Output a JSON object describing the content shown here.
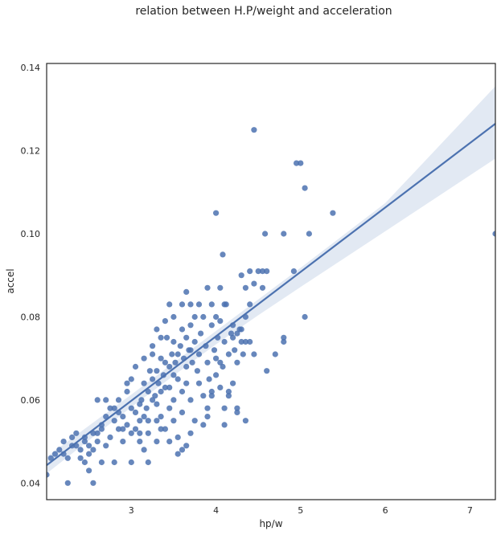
{
  "chart_data": {
    "type": "scatter",
    "title": "relation between H.P/weight and acceleration",
    "xlabel": "hp/w",
    "ylabel": "accel",
    "xlim": [
      2.0,
      7.3
    ],
    "ylim": [
      0.036,
      0.141
    ],
    "xticks": [
      3,
      4,
      5,
      6,
      7
    ],
    "yticks": [
      0.04,
      0.06,
      0.08,
      0.1,
      0.12,
      0.14
    ],
    "xtick_labels": [
      "3",
      "4",
      "5",
      "6",
      "7"
    ],
    "ytick_labels": [
      "0.04",
      "0.06",
      "0.08",
      "0.10",
      "0.12",
      "0.14"
    ],
    "grid": false,
    "point_color": "#4c72b0",
    "line_color": "#4c72b0",
    "ci_color": "#c6d3e8",
    "regression": {
      "x": [
        2.0,
        7.3
      ],
      "y": [
        0.0443,
        0.1265
      ]
    },
    "confidence_band": {
      "x": [
        2.0,
        3.0,
        4.0,
        4.5,
        5.0,
        6.0,
        7.3
      ],
      "lower": [
        0.0423,
        0.0583,
        0.0734,
        0.0804,
        0.0872,
        0.1006,
        0.1181
      ],
      "upper": [
        0.0463,
        0.0613,
        0.0766,
        0.0842,
        0.0918,
        0.1074,
        0.1355
      ]
    },
    "points": [
      [
        2.0,
        0.042
      ],
      [
        2.05,
        0.046
      ],
      [
        2.1,
        0.047
      ],
      [
        2.15,
        0.048
      ],
      [
        2.2,
        0.047
      ],
      [
        2.2,
        0.05
      ],
      [
        2.25,
        0.04
      ],
      [
        2.3,
        0.049
      ],
      [
        2.3,
        0.051
      ],
      [
        2.35,
        0.052
      ],
      [
        2.4,
        0.046
      ],
      [
        2.4,
        0.048
      ],
      [
        2.45,
        0.045
      ],
      [
        2.45,
        0.051
      ],
      [
        2.5,
        0.043
      ],
      [
        2.5,
        0.049
      ],
      [
        2.55,
        0.04
      ],
      [
        2.55,
        0.048
      ],
      [
        2.6,
        0.052
      ],
      [
        2.6,
        0.06
      ],
      [
        2.65,
        0.045
      ],
      [
        2.7,
        0.049
      ],
      [
        2.75,
        0.051
      ],
      [
        2.8,
        0.045
      ],
      [
        2.8,
        0.055
      ],
      [
        2.85,
        0.053
      ],
      [
        2.9,
        0.05
      ],
      [
        2.9,
        0.056
      ],
      [
        2.95,
        0.064
      ],
      [
        3.0,
        0.045
      ],
      [
        3.0,
        0.058
      ],
      [
        3.05,
        0.053
      ],
      [
        3.05,
        0.057
      ],
      [
        3.1,
        0.059
      ],
      [
        3.1,
        0.052
      ],
      [
        3.15,
        0.056
      ],
      [
        3.15,
        0.048
      ],
      [
        3.2,
        0.045
      ],
      [
        3.2,
        0.055
      ],
      [
        3.25,
        0.073
      ],
      [
        3.25,
        0.06
      ],
      [
        3.3,
        0.067
      ],
      [
        3.3,
        0.05
      ],
      [
        3.35,
        0.056
      ],
      [
        3.35,
        0.062
      ],
      [
        3.4,
        0.053
      ],
      [
        3.4,
        0.069
      ],
      [
        3.45,
        0.058
      ],
      [
        3.45,
        0.063
      ],
      [
        3.5,
        0.055
      ],
      [
        3.5,
        0.06
      ],
      [
        3.5,
        0.066
      ],
      [
        3.55,
        0.051
      ],
      [
        3.55,
        0.071
      ],
      [
        3.6,
        0.062
      ],
      [
        3.6,
        0.057
      ],
      [
        3.65,
        0.068
      ],
      [
        3.65,
        0.064
      ],
      [
        3.7,
        0.06
      ],
      [
        3.7,
        0.072
      ],
      [
        3.1,
        0.055
      ],
      [
        3.12,
        0.06
      ],
      [
        3.15,
        0.064
      ],
      [
        3.18,
        0.058
      ],
      [
        3.2,
        0.062
      ],
      [
        3.22,
        0.067
      ],
      [
        3.25,
        0.065
      ],
      [
        3.28,
        0.061
      ],
      [
        3.3,
        0.059
      ],
      [
        3.32,
        0.064
      ],
      [
        3.35,
        0.07
      ],
      [
        3.38,
        0.066
      ],
      [
        3.4,
        0.063
      ],
      [
        3.42,
        0.075
      ],
      [
        3.45,
        0.068
      ],
      [
        3.48,
        0.071
      ],
      [
        3.5,
        0.074
      ],
      [
        3.52,
        0.069
      ],
      [
        3.55,
        0.065
      ],
      [
        3.58,
        0.073
      ],
      [
        3.6,
        0.077
      ],
      [
        3.62,
        0.07
      ],
      [
        3.65,
        0.075
      ],
      [
        3.68,
        0.072
      ],
      [
        3.7,
        0.078
      ],
      [
        3.72,
        0.069
      ],
      [
        3.75,
        0.074
      ],
      [
        3.78,
        0.067
      ],
      [
        3.8,
        0.071
      ],
      [
        3.82,
        0.076
      ],
      [
        3.85,
        0.08
      ],
      [
        3.88,
        0.073
      ],
      [
        3.9,
        0.069
      ],
      [
        3.92,
        0.065
      ],
      [
        3.95,
        0.078
      ],
      [
        3.98,
        0.072
      ],
      [
        4.0,
        0.07
      ],
      [
        4.02,
        0.075
      ],
      [
        4.05,
        0.079
      ],
      [
        4.08,
        0.068
      ],
      [
        4.1,
        0.074
      ],
      [
        4.12,
        0.083
      ],
      [
        4.15,
        0.071
      ],
      [
        4.18,
        0.076
      ],
      [
        4.2,
        0.078
      ],
      [
        4.22,
        0.072
      ],
      [
        4.25,
        0.069
      ],
      [
        4.28,
        0.077
      ],
      [
        4.3,
        0.074
      ],
      [
        4.32,
        0.071
      ],
      [
        3.8,
        0.064
      ],
      [
        3.85,
        0.061
      ],
      [
        3.9,
        0.058
      ],
      [
        3.95,
        0.062
      ],
      [
        4.0,
        0.066
      ],
      [
        4.05,
        0.063
      ],
      [
        4.1,
        0.058
      ],
      [
        4.15,
        0.061
      ],
      [
        4.2,
        0.064
      ],
      [
        4.25,
        0.057
      ],
      [
        3.6,
        0.083
      ],
      [
        3.65,
        0.086
      ],
      [
        3.7,
        0.083
      ],
      [
        3.75,
        0.08
      ],
      [
        3.8,
        0.083
      ],
      [
        3.9,
        0.087
      ],
      [
        3.95,
        0.083
      ],
      [
        4.0,
        0.08
      ],
      [
        4.05,
        0.087
      ],
      [
        4.1,
        0.083
      ],
      [
        3.4,
        0.079
      ],
      [
        3.45,
        0.083
      ],
      [
        3.5,
        0.08
      ],
      [
        3.3,
        0.077
      ],
      [
        3.35,
        0.075
      ],
      [
        3.25,
        0.071
      ],
      [
        3.15,
        0.07
      ],
      [
        3.05,
        0.068
      ],
      [
        3.0,
        0.065
      ],
      [
        2.95,
        0.062
      ],
      [
        2.85,
        0.06
      ],
      [
        2.75,
        0.058
      ],
      [
        2.7,
        0.056
      ],
      [
        2.65,
        0.054
      ],
      [
        2.6,
        0.05
      ],
      [
        2.55,
        0.052
      ],
      [
        2.5,
        0.047
      ],
      [
        2.45,
        0.05
      ],
      [
        2.35,
        0.049
      ],
      [
        2.25,
        0.046
      ],
      [
        4.3,
        0.09
      ],
      [
        4.35,
        0.087
      ],
      [
        4.4,
        0.091
      ],
      [
        4.45,
        0.088
      ],
      [
        4.5,
        0.091
      ],
      [
        4.55,
        0.091
      ],
      [
        4.6,
        0.091
      ],
      [
        4.55,
        0.087
      ],
      [
        4.4,
        0.083
      ],
      [
        4.35,
        0.08
      ],
      [
        4.3,
        0.077
      ],
      [
        4.25,
        0.076
      ],
      [
        4.2,
        0.075
      ],
      [
        4.35,
        0.074
      ],
      [
        4.4,
        0.074
      ],
      [
        4.45,
        0.071
      ],
      [
        4.6,
        0.067
      ],
      [
        4.7,
        0.071
      ],
      [
        4.8,
        0.074
      ],
      [
        4.8,
        0.075
      ],
      [
        4.92,
        0.091
      ],
      [
        5.05,
        0.08
      ],
      [
        4.35,
        0.055
      ],
      [
        4.25,
        0.058
      ],
      [
        4.1,
        0.054
      ],
      [
        4.15,
        0.062
      ],
      [
        4.05,
        0.069
      ],
      [
        3.95,
        0.061
      ],
      [
        3.9,
        0.056
      ],
      [
        3.85,
        0.054
      ],
      [
        3.75,
        0.055
      ],
      [
        3.7,
        0.052
      ],
      [
        3.65,
        0.049
      ],
      [
        3.6,
        0.048
      ],
      [
        3.55,
        0.047
      ],
      [
        3.45,
        0.05
      ],
      [
        3.35,
        0.053
      ],
      [
        3.3,
        0.055
      ],
      [
        3.2,
        0.052
      ],
      [
        3.1,
        0.05
      ],
      [
        3.0,
        0.052
      ],
      [
        2.95,
        0.054
      ],
      [
        2.9,
        0.053
      ],
      [
        2.85,
        0.057
      ],
      [
        2.8,
        0.058
      ],
      [
        2.7,
        0.06
      ],
      [
        2.65,
        0.053
      ],
      [
        4.0,
        0.105
      ],
      [
        4.08,
        0.095
      ],
      [
        4.45,
        0.125
      ],
      [
        4.58,
        0.1
      ],
      [
        4.8,
        0.1
      ],
      [
        4.95,
        0.117
      ],
      [
        5.0,
        0.117
      ],
      [
        5.05,
        0.111
      ],
      [
        5.1,
        0.1
      ],
      [
        5.38,
        0.105
      ],
      [
        7.3,
        0.1
      ]
    ]
  }
}
